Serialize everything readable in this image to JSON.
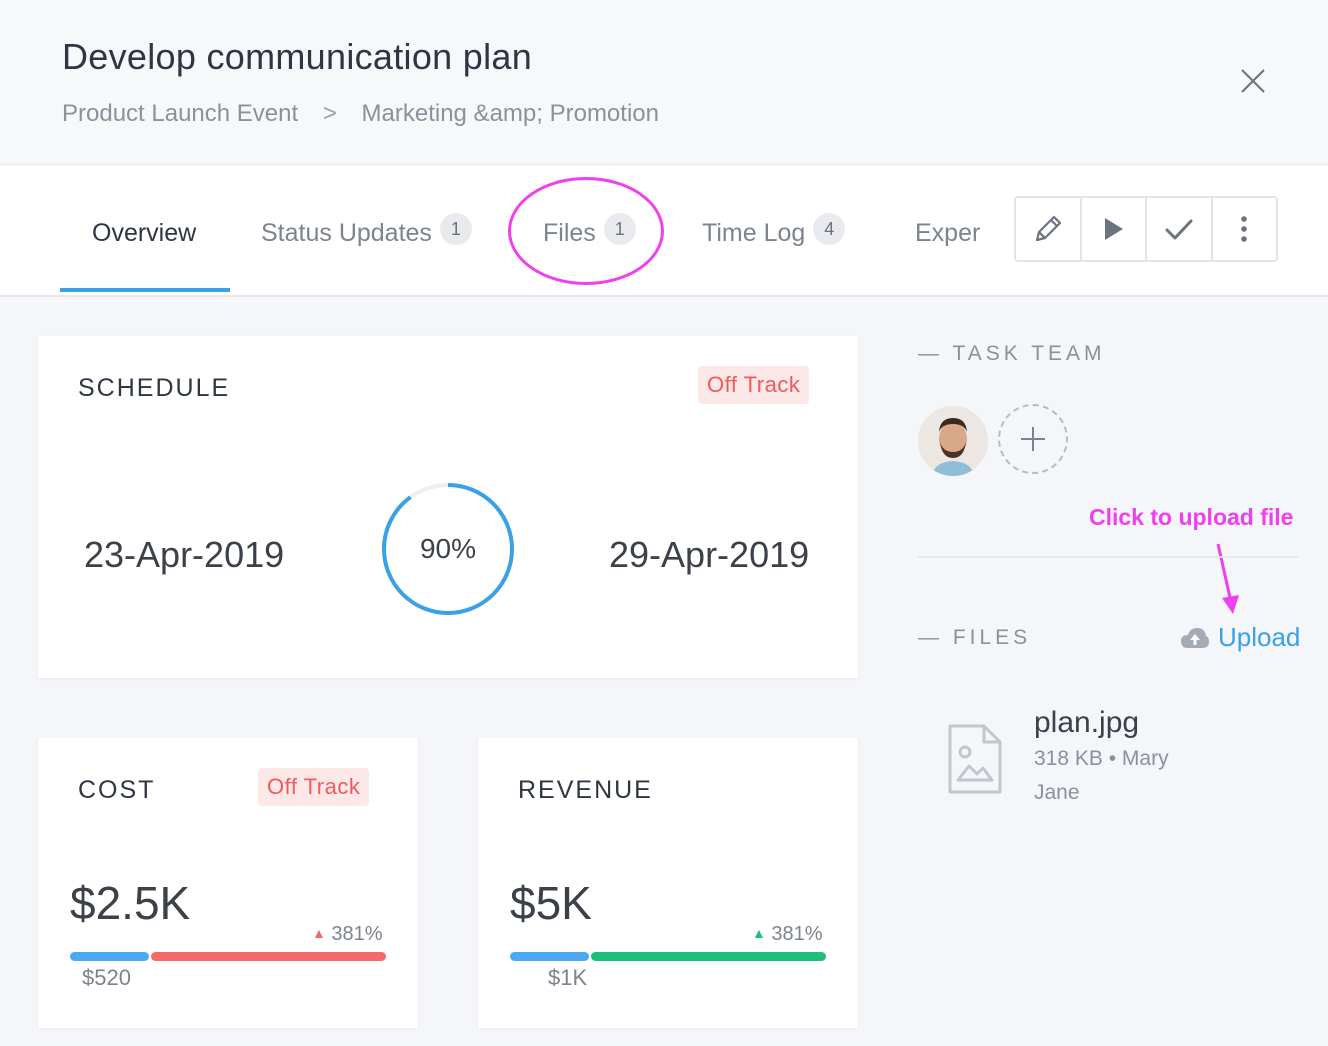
{
  "header": {
    "title": "Develop communication plan",
    "breadcrumb": [
      "Product Launch Event",
      "Marketing &amp; Promotion"
    ],
    "breadcrumb_separator": ">"
  },
  "tabs": [
    {
      "label": "Overview",
      "count": null,
      "active": true
    },
    {
      "label": "Status Updates",
      "count": "1"
    },
    {
      "label": "Files",
      "count": "1"
    },
    {
      "label": "Time Log",
      "count": "4"
    },
    {
      "label": "Exper",
      "count": null
    }
  ],
  "toolbar": {
    "icons": [
      "pencil-icon",
      "play-icon",
      "check-icon",
      "more-vertical-icon"
    ]
  },
  "schedule": {
    "title": "SCHEDULE",
    "status": "Off Track",
    "start_date": "23-Apr-2019",
    "end_date": "29-Apr-2019",
    "progress_label": "90%",
    "progress": 0.9
  },
  "cost": {
    "title": "COST",
    "status": "Off Track",
    "amount": "$2.5K",
    "change": "381%",
    "change_direction": "up",
    "baseline": "$520",
    "baseline_fraction": 0.25,
    "baseline_color": "#4aaaf0",
    "over_color": "#f46a6a"
  },
  "revenue": {
    "title": "REVENUE",
    "amount": "$5K",
    "change": "381%",
    "change_direction": "up",
    "baseline": "$1K",
    "baseline_fraction": 0.25,
    "baseline_color": "#4aaaf0",
    "over_color": "#1ebf7a"
  },
  "sidebar": {
    "team_label": "— TASK TEAM",
    "files_label": "— FILES",
    "upload_label": "Upload",
    "annotation": "Click to upload file",
    "files": [
      {
        "name": "plan.jpg",
        "meta_line1": "318 KB • Mary",
        "meta_line2": "Jane"
      }
    ]
  },
  "colors": {
    "accent": "#3aa0e8",
    "annotation": "#f03ff0",
    "off_track_bg": "#fde8e8",
    "off_track_text": "#f05a5a"
  }
}
